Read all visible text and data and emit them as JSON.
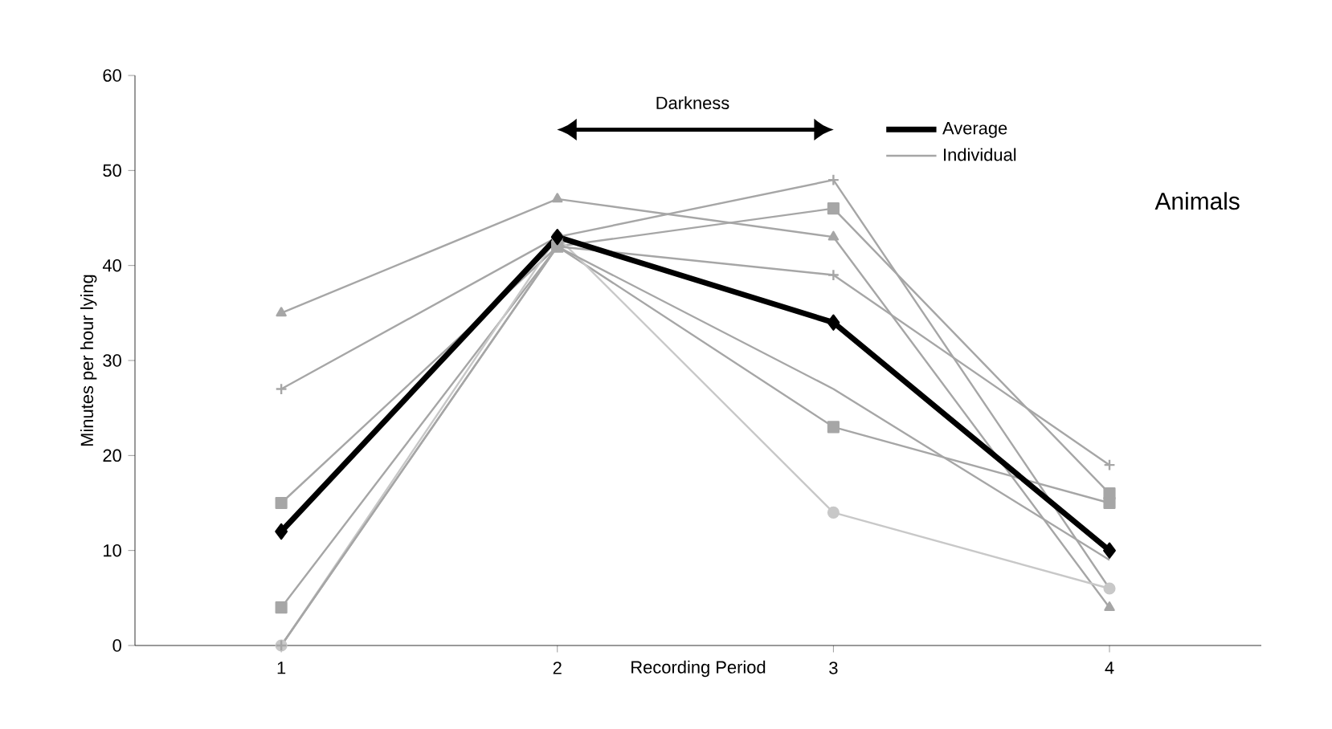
{
  "chart_data": {
    "type": "line",
    "xlabel": "Recording Period",
    "ylabel": "Minutes per hour lying",
    "legend_title": "Animals",
    "categories": [
      "1",
      "2",
      "3",
      "4"
    ],
    "ylim": [
      0,
      60
    ],
    "yticks": [
      0,
      10,
      20,
      30,
      40,
      50,
      60
    ],
    "legend": "top right",
    "line_style": "solid",
    "annotations": [
      "Darkness"
    ],
    "series": [
      {
        "name": "Individual",
        "color": "#a6a6a6",
        "marker": "triangle",
        "values": [
          35,
          47,
          43,
          4
        ]
      },
      {
        "color": "#a6a6a6",
        "marker": "cross",
        "values": [
          27,
          43,
          49,
          6
        ]
      },
      {
        "color": "#a6a6a6",
        "marker": "square",
        "values": [
          15,
          42,
          46,
          16
        ]
      },
      {
        "color": "#a6a6a6",
        "marker": "square",
        "values": [
          4,
          42,
          23,
          15
        ]
      },
      {
        "color": "#c8c8c8",
        "marker": "circle",
        "values": [
          0,
          43,
          14,
          6
        ]
      },
      {
        "color": "#a6a6a6",
        "marker": "cross",
        "values": [
          0,
          42,
          39,
          19
        ]
      },
      {
        "color": "#a6a6a6",
        "marker": "none",
        "values": [
          0,
          42,
          27,
          9
        ]
      },
      {
        "name": "Average",
        "color": "#000000",
        "marker": "diamond",
        "values": [
          12,
          43,
          34,
          10
        ]
      }
    ]
  }
}
